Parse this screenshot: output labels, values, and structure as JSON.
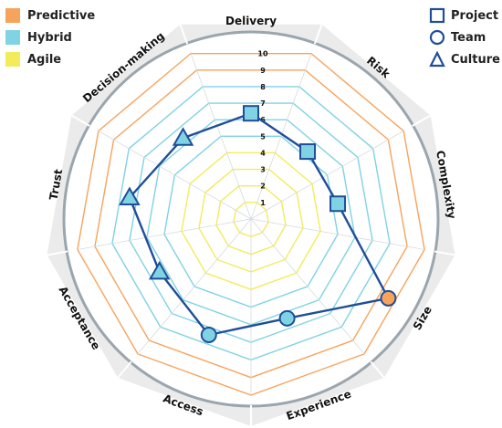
{
  "legend_left": [
    {
      "label": "Predictive",
      "color": "#f7a35c"
    },
    {
      "label": "Hybrid",
      "color": "#7fd3e3"
    },
    {
      "label": "Agile",
      "color": "#f2ec5b"
    }
  ],
  "legend_right": [
    {
      "label": "Project",
      "icon": "square-icon"
    },
    {
      "label": "Team",
      "icon": "circle-icon"
    },
    {
      "label": "Culture",
      "icon": "triangle-icon"
    }
  ],
  "colors": {
    "predictive": "#f7a35c",
    "hybrid": "#7fd3e3",
    "agile": "#f2ec5b",
    "series_line": "#1f4e99",
    "marker_fill": "#7fd3e3",
    "marker_highlight": "#f7a35c",
    "ring_band": "#ebebeb",
    "ring_edge": "#9aa5ad"
  },
  "chart_data": {
    "type": "radar",
    "axes": [
      "Delivery",
      "Risk",
      "Complexity",
      "Size",
      "Experience",
      "Access",
      "Acceptance",
      "Trust",
      "Decision-making"
    ],
    "ticks": [
      "1",
      "2",
      "3",
      "4",
      "5",
      "6",
      "7",
      "8",
      "9",
      "10"
    ],
    "range": [
      0,
      10
    ],
    "zones": [
      {
        "name": "Agile",
        "from": 1,
        "to": 4
      },
      {
        "name": "Hybrid",
        "from": 5,
        "to": 8
      },
      {
        "name": "Predictive",
        "from": 9,
        "to": 10
      }
    ],
    "series": [
      {
        "values": [
          6,
          5,
          5,
          9,
          6,
          7,
          6,
          7,
          6
        ]
      }
    ],
    "markers": [
      "square",
      "square",
      "square",
      "circle",
      "circle",
      "circle",
      "triangle",
      "triangle",
      "triangle"
    ],
    "highlight_index": 3
  }
}
